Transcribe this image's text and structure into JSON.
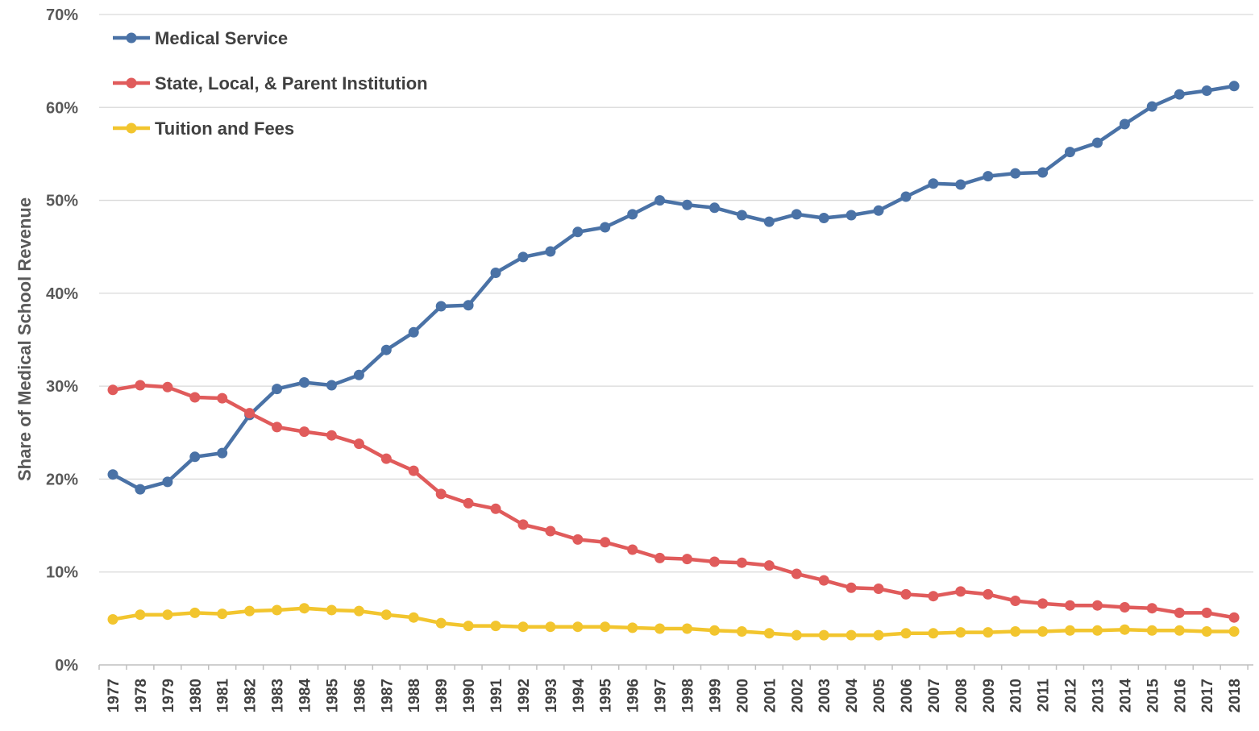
{
  "chart_data": {
    "type": "line",
    "title": "",
    "xlabel": "",
    "ylabel": "Share of Medical School Revenue",
    "ylim": [
      0,
      70
    ],
    "y_ticks": [
      0,
      10,
      20,
      30,
      40,
      50,
      60,
      70
    ],
    "y_tick_labels": [
      "0%",
      "10%",
      "20%",
      "30%",
      "40%",
      "50%",
      "60%",
      "70%"
    ],
    "grid": true,
    "legend_position": "top-left",
    "categories": [
      "1977",
      "1978",
      "1979",
      "1980",
      "1981",
      "1982",
      "1983",
      "1984",
      "1985",
      "1986",
      "1987",
      "1988",
      "1989",
      "1990",
      "1991",
      "1992",
      "1993",
      "1994",
      "1995",
      "1996",
      "1997",
      "1998",
      "1999",
      "2000",
      "2001",
      "2002",
      "2003",
      "2004",
      "2005",
      "2006",
      "2007",
      "2008",
      "2009",
      "2010",
      "2011",
      "2012",
      "2013",
      "2014",
      "2015",
      "2016",
      "2017",
      "2018"
    ],
    "series": [
      {
        "name": "Medical Service",
        "color": "#4a72a6",
        "values": [
          20.5,
          18.9,
          19.7,
          22.4,
          22.8,
          26.9,
          29.7,
          30.4,
          30.1,
          31.2,
          33.9,
          35.8,
          38.6,
          38.7,
          42.2,
          43.9,
          44.5,
          46.6,
          47.1,
          48.5,
          50.0,
          49.5,
          49.2,
          48.4,
          47.7,
          48.5,
          48.1,
          48.4,
          48.9,
          50.4,
          51.8,
          51.7,
          52.6,
          52.9,
          53.0,
          55.2,
          56.2,
          58.2,
          60.1,
          61.4,
          61.8,
          62.3
        ]
      },
      {
        "name": "State, Local, & Parent Institution",
        "color": "#e05b5b",
        "values": [
          29.6,
          30.1,
          29.9,
          28.8,
          28.7,
          27.1,
          25.6,
          25.1,
          24.7,
          23.8,
          22.2,
          20.9,
          18.4,
          17.4,
          16.8,
          15.1,
          14.4,
          13.5,
          13.2,
          12.4,
          11.5,
          11.4,
          11.1,
          11.0,
          10.7,
          9.8,
          9.1,
          8.3,
          8.2,
          7.6,
          7.4,
          7.9,
          7.6,
          6.9,
          6.6,
          6.4,
          6.4,
          6.2,
          6.1,
          5.6,
          5.6,
          5.1
        ]
      },
      {
        "name": "Tuition and Fees",
        "color": "#f2c52e",
        "values": [
          4.9,
          5.4,
          5.4,
          5.6,
          5.5,
          5.8,
          5.9,
          6.1,
          5.9,
          5.8,
          5.4,
          5.1,
          4.5,
          4.2,
          4.2,
          4.1,
          4.1,
          4.1,
          4.1,
          4.0,
          3.9,
          3.9,
          3.7,
          3.6,
          3.4,
          3.2,
          3.2,
          3.2,
          3.2,
          3.4,
          3.4,
          3.5,
          3.5,
          3.6,
          3.6,
          3.7,
          3.7,
          3.8,
          3.7,
          3.7,
          3.6,
          3.6
        ]
      }
    ]
  }
}
